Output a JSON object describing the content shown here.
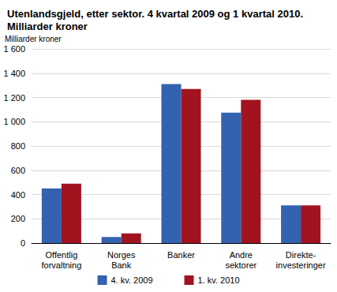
{
  "chart_data": {
    "type": "bar",
    "title": "Utenlandsgjeld, etter sektor. 4 kvartal 2009 og 1 kvartal 2010.\nMilliarder kroner",
    "y_label": "Milliarder kroner",
    "categories": [
      "Offentlig\nforvaltning",
      "Norges\nBank",
      "Banker",
      "Andre\nsektorer",
      "Direkte-\ninvesteringer"
    ],
    "series": [
      {
        "name": "4. kv. 2009",
        "color": "#3461b0",
        "values": [
          450,
          50,
          1310,
          1075,
          310
        ]
      },
      {
        "name": "1. kv. 2010",
        "color": "#a1141f",
        "values": [
          490,
          80,
          1270,
          1180,
          310
        ]
      }
    ],
    "ylim": [
      0,
      1600
    ],
    "yticks": [
      0,
      200,
      400,
      600,
      800,
      {
        "value": 1000,
        "label": "1 000"
      },
      {
        "value": 1200,
        "label": "1 200"
      },
      {
        "value": 1400,
        "label": "1 400"
      },
      {
        "value": 1600,
        "label": "1 600"
      }
    ],
    "grid": true,
    "legend": "bottom",
    "data_labels": false
  }
}
